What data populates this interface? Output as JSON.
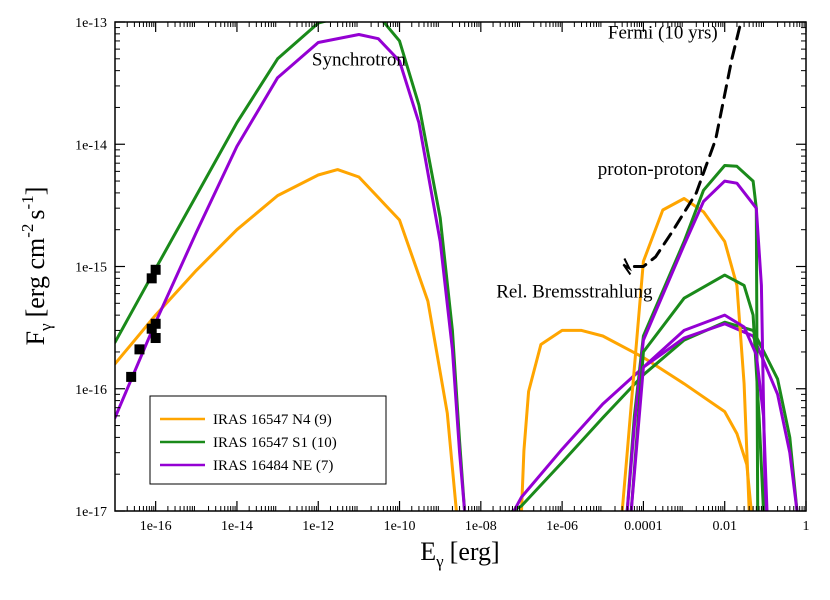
{
  "chart_data": {
    "type": "line",
    "x_scale": "log",
    "y_scale": "log",
    "xlim": [
      1e-17,
      1
    ],
    "ylim": [
      1e-17,
      1e-13
    ],
    "xlabel": {
      "main": "E",
      "sub": "γ",
      "rest": "[erg]"
    },
    "ylabel": {
      "main": "F",
      "sub": "γ",
      "rest": "[erg cm",
      "sup1": "-2",
      "mid": "s",
      "sup2": "-1",
      "end": "]"
    },
    "x_ticks": [
      {
        "value": 1e-16,
        "label": "1e-16"
      },
      {
        "value": 1e-14,
        "label": "1e-14"
      },
      {
        "value": 1e-12,
        "label": "1e-12"
      },
      {
        "value": 1e-10,
        "label": "1e-10"
      },
      {
        "value": 1e-08,
        "label": "1e-08"
      },
      {
        "value": 1e-06,
        "label": "1e-06"
      },
      {
        "value": 0.0001,
        "label": "0.0001"
      },
      {
        "value": 0.01,
        "label": "0.01"
      },
      {
        "value": 1,
        "label": "1"
      }
    ],
    "y_ticks": [
      {
        "value": 1e-17,
        "label": "1e-17"
      },
      {
        "value": 1e-16,
        "label": "1e-16"
      },
      {
        "value": 1e-15,
        "label": "1e-15"
      },
      {
        "value": 1e-14,
        "label": "1e-14"
      },
      {
        "value": 1e-13,
        "label": "1e-13"
      }
    ],
    "annotations": [
      {
        "text": "Synchrotron",
        "x": 1e-11,
        "y": 4.4e-14
      },
      {
        "text": "Fermi (10 yrs)",
        "x": 0.0003,
        "y": 7.3e-14
      },
      {
        "text": "proton-proton",
        "x": 0.00015,
        "y": 5.6e-15
      },
      {
        "text": "Rel. Bremsstrahlung",
        "x": 2e-06,
        "y": 5.6e-16
      }
    ],
    "legend": {
      "position": "bottom-left",
      "entries": [
        {
          "name": "IRAS 16547 N4 (9)",
          "color": "#FFA500"
        },
        {
          "name": "IRAS 16547 S1 (10)",
          "color": "#1A8A1A"
        },
        {
          "name": "IRAS 16484 NE (7)",
          "color": "#9400D3"
        }
      ]
    },
    "series": [
      {
        "name": "N4 synchrotron",
        "color": "#FFA500",
        "points": [
          [
            1e-17,
            1.6e-16
          ],
          [
            1e-16,
            4e-16
          ],
          [
            1e-15,
            9.3e-16
          ],
          [
            1e-14,
            2e-15
          ],
          [
            1e-13,
            3.8e-15
          ],
          [
            1e-12,
            5.6e-15
          ],
          [
            3e-12,
            6.2e-15
          ],
          [
            1e-11,
            5.4e-15
          ],
          [
            1e-10,
            2.4e-15
          ],
          [
            5e-10,
            5.2e-16
          ],
          [
            1.5e-09,
            6.3e-17
          ],
          [
            2.5e-09,
            1e-17
          ]
        ]
      },
      {
        "name": "S1 synchrotron",
        "color": "#1A8A1A",
        "points": [
          [
            1e-17,
            2.4e-16
          ],
          [
            1e-16,
            9.6e-16
          ],
          [
            1e-15,
            3.8e-15
          ],
          [
            1e-14,
            1.5e-14
          ],
          [
            1e-13,
            5e-14
          ],
          [
            1e-12,
            9.8e-14
          ],
          [
            1e-11,
            1.2e-13
          ],
          [
            3e-11,
            1.13e-13
          ],
          [
            1e-10,
            7e-14
          ],
          [
            3e-10,
            2.1e-14
          ],
          [
            1e-09,
            2.5e-15
          ],
          [
            2e-09,
            3e-16
          ],
          [
            3e-09,
            3.7e-17
          ],
          [
            4e-09,
            1e-17
          ]
        ]
      },
      {
        "name": "NE synchrotron",
        "color": "#9400D3",
        "points": [
          [
            1e-17,
            5.8e-17
          ],
          [
            1e-16,
            3.5e-16
          ],
          [
            1e-15,
            1.9e-15
          ],
          [
            1e-14,
            9.6e-15
          ],
          [
            1e-13,
            3.5e-14
          ],
          [
            1e-12,
            6.8e-14
          ],
          [
            1e-11,
            7.9e-14
          ],
          [
            3e-11,
            7.3e-14
          ],
          [
            1e-10,
            4.8e-14
          ],
          [
            3e-10,
            1.5e-14
          ],
          [
            1e-09,
            1.6e-15
          ],
          [
            2e-09,
            2.1e-16
          ],
          [
            3e-09,
            3e-17
          ],
          [
            4e-09,
            1e-17
          ]
        ]
      },
      {
        "name": "N4 bremsstrahlung",
        "color": "#FFA500",
        "points": [
          [
            1e-07,
            1e-17
          ],
          [
            1.15e-07,
            3.1e-17
          ],
          [
            1.5e-07,
            9.5e-17
          ],
          [
            3e-07,
            2.3e-16
          ],
          [
            1e-06,
            3e-16
          ],
          [
            3e-06,
            3e-16
          ],
          [
            1e-05,
            2.7e-16
          ],
          [
            0.0001,
            1.8e-16
          ],
          [
            0.001,
            1.1e-16
          ],
          [
            0.01,
            6.5e-17
          ],
          [
            0.02,
            4.3e-17
          ],
          [
            0.035,
            2.4e-17
          ],
          [
            0.045,
            1e-17
          ]
        ]
      },
      {
        "name": "S1 bremsstrahlung",
        "color": "#1A8A1A",
        "points": [
          [
            6e-08,
            1e-17
          ],
          [
            1e-07,
            1.1e-17
          ],
          [
            1e-06,
            2.5e-17
          ],
          [
            1e-05,
            5.8e-17
          ],
          [
            0.0001,
            1.3e-16
          ],
          [
            0.001,
            2.5e-16
          ],
          [
            0.01,
            3.5e-16
          ],
          [
            0.05,
            3e-16
          ],
          [
            0.2,
            1.2e-16
          ],
          [
            0.4,
            4e-17
          ],
          [
            0.6,
            1e-17
          ]
        ]
      },
      {
        "name": "NE bremsstrahlung",
        "color": "#9400D3",
        "points": [
          [
            6.5e-08,
            1e-17
          ],
          [
            1e-07,
            1.3e-17
          ],
          [
            1e-06,
            3.2e-17
          ],
          [
            1e-05,
            7.5e-17
          ],
          [
            0.0001,
            1.5e-16
          ],
          [
            0.001,
            2.6e-16
          ],
          [
            0.01,
            3.4e-16
          ],
          [
            0.05,
            2.7e-16
          ],
          [
            0.2,
            9e-17
          ],
          [
            0.4,
            3e-17
          ],
          [
            0.6,
            1e-17
          ]
        ]
      },
      {
        "name": "N4 proton-proton",
        "color": "#FFA500",
        "points": [
          [
            3e-05,
            1e-17
          ],
          [
            4e-05,
            3e-17
          ],
          [
            6e-05,
            1.5e-16
          ],
          [
            0.0001,
            1.1e-15
          ],
          [
            0.0003,
            2.9e-15
          ],
          [
            0.001,
            3.6e-15
          ],
          [
            0.003,
            2.8e-15
          ],
          [
            0.01,
            1.6e-15
          ],
          [
            0.02,
            7e-16
          ],
          [
            0.03,
            1.1e-16
          ],
          [
            0.04,
            1e-17
          ]
        ]
      },
      {
        "name": "S1 proton-proton",
        "color": "#1A8A1A",
        "points": [
          [
            4e-05,
            1e-17
          ],
          [
            6e-05,
            6e-17
          ],
          [
            0.0001,
            2.7e-16
          ],
          [
            0.001,
            1.6e-15
          ],
          [
            0.003,
            4.2e-15
          ],
          [
            0.01,
            6.7e-15
          ],
          [
            0.02,
            6.6e-15
          ],
          [
            0.05,
            5e-15
          ],
          [
            0.06,
            3e-15
          ],
          [
            0.065,
            1e-17
          ]
        ]
      },
      {
        "name": "NE proton-proton",
        "color": "#9400D3",
        "points": [
          [
            4e-05,
            1e-17
          ],
          [
            6e-05,
            5e-17
          ],
          [
            0.0001,
            2.5e-16
          ],
          [
            0.001,
            1.5e-15
          ],
          [
            0.003,
            3.4e-15
          ],
          [
            0.01,
            5e-15
          ],
          [
            0.02,
            4.8e-15
          ],
          [
            0.06,
            3e-15
          ],
          [
            0.08,
            7e-16
          ],
          [
            0.1,
            1e-17
          ]
        ]
      },
      {
        "name": "S1 pp low",
        "color": "#1A8A1A",
        "points": [
          [
            5e-05,
            1e-17
          ],
          [
            0.0001,
            2e-16
          ],
          [
            0.001,
            5.5e-16
          ],
          [
            0.01,
            8.5e-16
          ],
          [
            0.03,
            7e-16
          ],
          [
            0.05,
            4e-16
          ],
          [
            0.07,
            5.8e-17
          ],
          [
            0.09,
            1e-17
          ]
        ]
      },
      {
        "name": "NE pp low",
        "color": "#9400D3",
        "points": [
          [
            5e-05,
            1e-17
          ],
          [
            0.0001,
            1.5e-16
          ],
          [
            0.001,
            3e-16
          ],
          [
            0.01,
            4e-16
          ],
          [
            0.03,
            3.2e-16
          ],
          [
            0.06,
            1.9e-16
          ],
          [
            0.09,
            6e-17
          ],
          [
            0.11,
            1e-17
          ]
        ]
      },
      {
        "name": "Fermi (10 yrs) sensitivity",
        "color": "#000000",
        "dashed": true,
        "points": [
          [
            6e-05,
            1e-15
          ],
          [
            0.0001,
            1e-15
          ],
          [
            0.0002,
            1.2e-15
          ],
          [
            0.0005,
            1.9e-15
          ],
          [
            0.002,
            4e-15
          ],
          [
            0.006,
            1.1e-14
          ],
          [
            0.015,
            5e-14
          ],
          [
            0.025,
            1e-13
          ]
        ]
      }
    ],
    "data_points": [
      {
        "x": 1e-16,
        "y": 9.4e-16
      },
      {
        "x": 8e-17,
        "y": 8e-16
      },
      {
        "x": 8e-17,
        "y": 3.1e-16
      },
      {
        "x": 1e-16,
        "y": 3.4e-16
      },
      {
        "x": 1e-16,
        "y": 2.6e-16
      },
      {
        "x": 4e-17,
        "y": 2.1e-16
      },
      {
        "x": 2.5e-17,
        "y": 1.25e-16
      }
    ]
  }
}
